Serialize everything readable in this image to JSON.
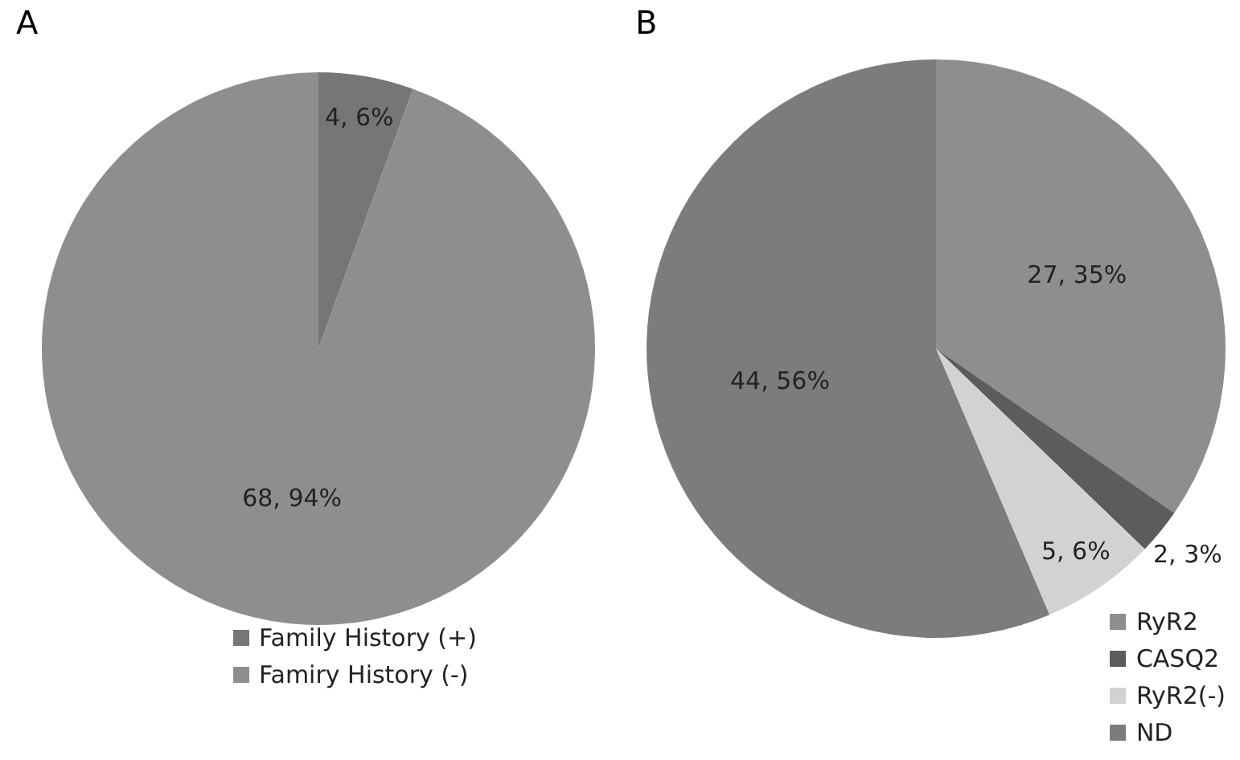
{
  "chart_data": [
    {
      "type": "pie",
      "title": "A",
      "categories": [
        "Family History (+)",
        "Famiry History (-)"
      ],
      "values": [
        4,
        68
      ],
      "value_labels": [
        "4, 6%",
        "68, 94%"
      ],
      "colors": [
        "#767676",
        "#8e8e8e"
      ],
      "legend": "bottom"
    },
    {
      "type": "pie",
      "title": "B",
      "categories": [
        "RyR2",
        "CASQ2",
        "RyR2(-)",
        "ND"
      ],
      "values": [
        27,
        2,
        5,
        44
      ],
      "value_labels": [
        "27, 35%",
        "2, 3%",
        "5, 6%",
        "44, 56%"
      ],
      "colors": [
        "#8e8e8e",
        "#5c5c5c",
        "#d2d2d2",
        "#7c7c7c"
      ],
      "legend": "bottom right"
    }
  ]
}
